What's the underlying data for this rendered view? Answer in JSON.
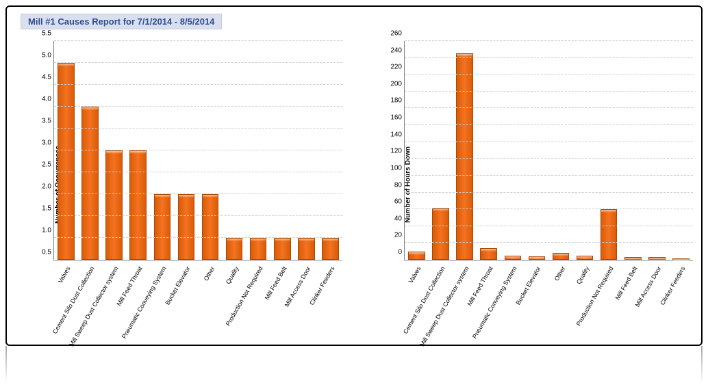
{
  "report": {
    "title": "Mill #1 Causes Report for 7/1/2014 - 8/5/2014",
    "title_bg": "#d9dfef",
    "title_color": "#2f4f8f",
    "title_border": "#c2cbe0",
    "title_fontsize": 13
  },
  "panel": {
    "border_color": "#000000",
    "background": "#ffffff",
    "border_radius": 6
  },
  "categories": [
    "Valves",
    "Cement Silo Dust Collection",
    "Mill Sweep Dust Collector system",
    "Mill Feed Throat",
    "Pneumatic Conveying System",
    "Bucket Elevator",
    "Other",
    "Quality",
    "Production Not Required",
    "Mill Feed Belt",
    "Mill Access Door",
    "Clinker Feeders"
  ],
  "left_chart": {
    "type": "bar",
    "ylabel": "Number of Occurrences",
    "label_fontsize": 10,
    "values": [
      5.0,
      4.0,
      3.0,
      3.0,
      2.0,
      2.0,
      2.0,
      1.0,
      1.0,
      1.0,
      1.0,
      1.0
    ],
    "ylim": [
      0.5,
      5.5
    ],
    "ytick_step": 0.5,
    "yticks": [
      0.5,
      1.0,
      1.5,
      2.0,
      2.5,
      3.0,
      3.5,
      4.0,
      4.5,
      5.0,
      5.5
    ],
    "ytick_labels": [
      "0.5",
      "1.0",
      "1.5",
      "2.0",
      "2.5",
      "3.0",
      "3.5",
      "4.0",
      "4.5",
      "5.0",
      "5.5"
    ],
    "bar_color": "#f37321",
    "bar_border": "#a64b00",
    "grid_color": "#cccccc",
    "axis_color": "#808080",
    "background_color": "#ffffff",
    "bar_width": 0.7,
    "x_label_rotation": -60,
    "x_label_fontsize": 9,
    "y_tick_fontsize": 10
  },
  "right_chart": {
    "type": "bar",
    "ylabel": "Number of Hours Down",
    "label_fontsize": 10,
    "values": [
      10,
      62,
      245,
      14,
      5,
      4,
      8,
      5,
      60,
      3,
      3,
      2
    ],
    "ylim": [
      0,
      260
    ],
    "ytick_step": 20,
    "yticks": [
      0,
      20,
      40,
      60,
      80,
      100,
      120,
      140,
      160,
      180,
      200,
      220,
      240,
      260
    ],
    "ytick_labels": [
      "0",
      "20",
      "40",
      "60",
      "80",
      "100",
      "120",
      "140",
      "160",
      "180",
      "200",
      "220",
      "240",
      "260"
    ],
    "bar_color": "#f37321",
    "bar_border": "#a64b00",
    "grid_color": "#cccccc",
    "axis_color": "#808080",
    "background_color": "#ffffff",
    "bar_width": 0.7,
    "x_label_rotation": -60,
    "x_label_fontsize": 9,
    "y_tick_fontsize": 10
  },
  "reflection": {
    "opacity": 0.35,
    "height": 60
  }
}
